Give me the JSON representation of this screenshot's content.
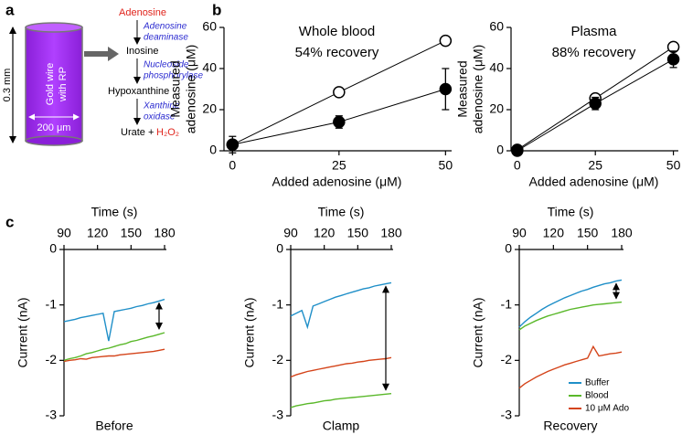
{
  "panel_labels": [
    "a",
    "b",
    "c"
  ],
  "diagram": {
    "substrate": "Adenosine",
    "enzyme1": [
      "Adenosine",
      "deaminase"
    ],
    "inter1": "Inosine",
    "enzyme2": [
      "Nucleoside",
      "phosphorylase"
    ],
    "inter2": "Hypoxanthine",
    "enzyme3": [
      "Xanthine",
      "oxidase"
    ],
    "product": "Urate +",
    "peroxide": "H₂O₂",
    "wire": [
      "Gold wire",
      "with RP"
    ],
    "width": "200 μm",
    "length": "0.3 mm"
  },
  "chart_data": [
    {
      "type": "line",
      "annotations": [
        "Whole blood",
        "54% recovery"
      ],
      "xlabel": "Added adenosine (μM)",
      "ylabel": [
        "Measured",
        "adenosine (μM)"
      ],
      "x": [
        0,
        25,
        50
      ],
      "xlim": [
        -2,
        51
      ],
      "xticks": [
        0,
        25,
        50
      ],
      "ylim": [
        0,
        60
      ],
      "yticks": [
        0,
        20,
        40,
        60
      ],
      "series": [
        {
          "color": "#000000",
          "marker_fill": "#ffffff",
          "values": [
            3,
            28.5,
            53.5
          ]
        },
        {
          "color": "#000000",
          "marker_fill": "#000000",
          "values": [
            3,
            14,
            30
          ],
          "errors": [
            4,
            3,
            10
          ]
        }
      ]
    },
    {
      "type": "line",
      "annotations": [
        "Plasma",
        "88% recovery"
      ],
      "xlabel": "Added adenosine (μM)",
      "ylabel": [
        "Measured",
        "adenosine (μM)"
      ],
      "x": [
        0,
        25,
        50
      ],
      "xlim": [
        -2,
        51
      ],
      "xticks": [
        0,
        25,
        50
      ],
      "ylim": [
        0,
        60
      ],
      "yticks": [
        0,
        20,
        40,
        60
      ],
      "series": [
        {
          "color": "#000000",
          "marker_fill": "#ffffff",
          "values": [
            0.5,
            25.5,
            50.5
          ]
        },
        {
          "color": "#000000",
          "marker_fill": "#000000",
          "values": [
            0,
            23,
            44.5
          ],
          "errors": [
            2,
            3,
            4
          ]
        }
      ]
    },
    {
      "type": "trace",
      "xlabel": "Time (s)",
      "ylabel": "Current (nA)",
      "label": "Before",
      "x_axis_position": "top",
      "x": [
        90,
        95,
        100,
        105,
        110,
        115,
        120,
        125,
        130,
        135,
        140,
        145,
        150,
        155,
        160,
        165,
        170,
        175,
        180
      ],
      "xlim": [
        90,
        180
      ],
      "xticks": [
        90,
        120,
        150,
        180
      ],
      "ylim": [
        -3,
        0
      ],
      "yticks": [
        0,
        -1,
        -2,
        -3
      ],
      "series": [
        {
          "color": "#1f8fc8",
          "values": [
            -1.3,
            -1.28,
            -1.26,
            -1.23,
            -1.21,
            -1.19,
            -1.17,
            -1.15,
            -1.65,
            -1.12,
            -1.1,
            -1.08,
            -1.06,
            -1.03,
            -1.01,
            -0.98,
            -0.96,
            -0.93,
            -0.9
          ]
        },
        {
          "color": "#5ab82a",
          "values": [
            -2.0,
            -1.97,
            -1.95,
            -1.92,
            -1.88,
            -1.86,
            -1.83,
            -1.8,
            -1.78,
            -1.75,
            -1.72,
            -1.7,
            -1.66,
            -1.64,
            -1.61,
            -1.58,
            -1.56,
            -1.53,
            -1.5
          ]
        },
        {
          "color": "#d4441a",
          "values": [
            -2.02,
            -2.0,
            -1.99,
            -1.97,
            -1.98,
            -1.95,
            -1.94,
            -1.93,
            -1.92,
            -1.92,
            -1.9,
            -1.89,
            -1.88,
            -1.87,
            -1.86,
            -1.85,
            -1.84,
            -1.82,
            -1.8
          ]
        }
      ]
    },
    {
      "type": "trace",
      "xlabel": "Time (s)",
      "ylabel": "Current (nA)",
      "label": "Clamp",
      "x_axis_position": "top",
      "x": [
        90,
        95,
        100,
        105,
        110,
        115,
        120,
        125,
        130,
        135,
        140,
        145,
        150,
        155,
        160,
        165,
        170,
        175,
        180
      ],
      "xlim": [
        90,
        180
      ],
      "xticks": [
        90,
        120,
        150,
        180
      ],
      "ylim": [
        -3,
        0
      ],
      "yticks": [
        0,
        -1,
        -2,
        -3
      ],
      "series": [
        {
          "color": "#1f8fc8",
          "values": [
            -1.2,
            -1.15,
            -1.1,
            -1.4,
            -1.02,
            -0.98,
            -0.94,
            -0.9,
            -0.86,
            -0.83,
            -0.8,
            -0.77,
            -0.74,
            -0.71,
            -0.69,
            -0.66,
            -0.64,
            -0.62,
            -0.6
          ]
        },
        {
          "color": "#5ab82a",
          "values": [
            -2.85,
            -2.82,
            -2.8,
            -2.78,
            -2.77,
            -2.75,
            -2.73,
            -2.72,
            -2.7,
            -2.69,
            -2.68,
            -2.67,
            -2.66,
            -2.65,
            -2.64,
            -2.63,
            -2.62,
            -2.61,
            -2.6
          ]
        },
        {
          "color": "#d4441a",
          "values": [
            -2.3,
            -2.26,
            -2.23,
            -2.2,
            -2.18,
            -2.16,
            -2.14,
            -2.12,
            -2.1,
            -2.08,
            -2.06,
            -2.05,
            -2.03,
            -2.02,
            -2.0,
            -1.99,
            -1.98,
            -1.97,
            -1.95
          ]
        }
      ]
    },
    {
      "type": "trace",
      "xlabel": "Time (s)",
      "ylabel": "Current (nA)",
      "label": "Recovery",
      "x_axis_position": "top",
      "legend": "lower right",
      "x": [
        90,
        95,
        100,
        105,
        110,
        115,
        120,
        125,
        130,
        135,
        140,
        145,
        150,
        155,
        160,
        165,
        170,
        175,
        180
      ],
      "xlim": [
        90,
        180
      ],
      "xticks": [
        90,
        120,
        150,
        180
      ],
      "ylim": [
        -3,
        0
      ],
      "yticks": [
        0,
        -1,
        -2,
        -3
      ],
      "series": [
        {
          "name": "Buffer",
          "color": "#1f8fc8",
          "values": [
            -1.4,
            -1.3,
            -1.22,
            -1.15,
            -1.08,
            -1.02,
            -0.97,
            -0.92,
            -0.87,
            -0.83,
            -0.79,
            -0.75,
            -0.72,
            -0.68,
            -0.65,
            -0.62,
            -0.6,
            -0.57,
            -0.55
          ]
        },
        {
          "name": "Blood",
          "color": "#5ab82a",
          "values": [
            -1.45,
            -1.38,
            -1.33,
            -1.28,
            -1.24,
            -1.2,
            -1.17,
            -1.14,
            -1.11,
            -1.08,
            -1.06,
            -1.04,
            -1.02,
            -1.0,
            -0.99,
            -0.98,
            -0.97,
            -0.96,
            -0.95
          ]
        },
        {
          "name": "10 μM Ado",
          "color": "#d4441a",
          "values": [
            -2.5,
            -2.42,
            -2.36,
            -2.3,
            -2.25,
            -2.2,
            -2.16,
            -2.12,
            -2.08,
            -2.05,
            -2.02,
            -1.99,
            -1.96,
            -1.75,
            -1.92,
            -1.9,
            -1.88,
            -1.87,
            -1.85
          ]
        }
      ]
    }
  ]
}
